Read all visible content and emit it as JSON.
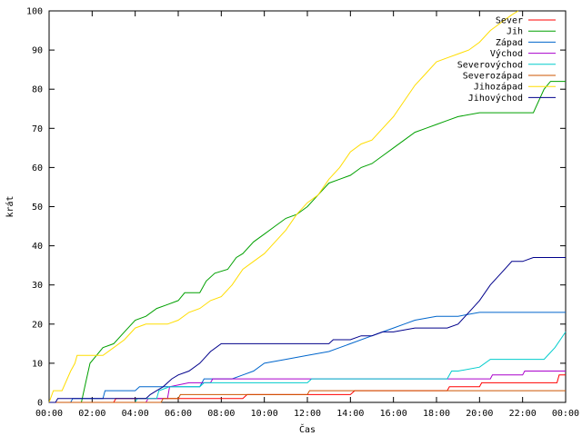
{
  "chart_data": {
    "type": "line",
    "xlabel": "Čas",
    "ylabel": "krát",
    "xlim": [
      0,
      24
    ],
    "ylim": [
      0,
      100
    ],
    "x_ticks": [
      "00:00",
      "02:00",
      "04:00",
      "06:00",
      "08:00",
      "10:00",
      "12:00",
      "14:00",
      "16:00",
      "18:00",
      "20:00",
      "22:00",
      "00:00"
    ],
    "y_ticks": [
      0,
      10,
      20,
      30,
      40,
      50,
      60,
      70,
      80,
      90,
      100
    ],
    "grid": false,
    "legend_position": "top-right",
    "series": [
      {
        "name": "Sever",
        "color": "#ff0000",
        "points": [
          [
            0,
            0
          ],
          [
            3,
            0
          ],
          [
            3.1,
            1
          ],
          [
            9,
            1
          ],
          [
            9.2,
            2
          ],
          [
            14,
            2
          ],
          [
            14.2,
            3
          ],
          [
            18.5,
            3
          ],
          [
            18.6,
            4
          ],
          [
            20,
            4
          ],
          [
            20.1,
            5
          ],
          [
            23.6,
            5
          ],
          [
            23.7,
            7
          ],
          [
            24,
            7
          ]
        ]
      },
      {
        "name": "Jih",
        "color": "#00a000",
        "points": [
          [
            0,
            0
          ],
          [
            1.5,
            0
          ],
          [
            1.7,
            5
          ],
          [
            1.9,
            10
          ],
          [
            2.2,
            12
          ],
          [
            2.5,
            14
          ],
          [
            3,
            15
          ],
          [
            3.5,
            18
          ],
          [
            4,
            21
          ],
          [
            4.5,
            22
          ],
          [
            5,
            24
          ],
          [
            5.5,
            25
          ],
          [
            6,
            26
          ],
          [
            6.3,
            28
          ],
          [
            7,
            28
          ],
          [
            7.3,
            31
          ],
          [
            7.7,
            33
          ],
          [
            8.3,
            34
          ],
          [
            8.7,
            37
          ],
          [
            9,
            38
          ],
          [
            9.5,
            41
          ],
          [
            10,
            43
          ],
          [
            10.5,
            45
          ],
          [
            11,
            47
          ],
          [
            11.5,
            48
          ],
          [
            12,
            50
          ],
          [
            12.5,
            53
          ],
          [
            13,
            56
          ],
          [
            13.5,
            57
          ],
          [
            14,
            58
          ],
          [
            14.5,
            60
          ],
          [
            15,
            61
          ],
          [
            15.5,
            63
          ],
          [
            16,
            65
          ],
          [
            16.5,
            67
          ],
          [
            17,
            69
          ],
          [
            17.5,
            70
          ],
          [
            18,
            71
          ],
          [
            18.5,
            72
          ],
          [
            19,
            73
          ],
          [
            20,
            74
          ],
          [
            22.5,
            74
          ],
          [
            23,
            80
          ],
          [
            23.3,
            82
          ],
          [
            24,
            82
          ]
        ]
      },
      {
        "name": "Západ",
        "color": "#0066cc",
        "points": [
          [
            0,
            0
          ],
          [
            1,
            0
          ],
          [
            1.1,
            1
          ],
          [
            2.5,
            1
          ],
          [
            2.6,
            3
          ],
          [
            4,
            3
          ],
          [
            4.2,
            4
          ],
          [
            7,
            4
          ],
          [
            7.2,
            6
          ],
          [
            8.5,
            6
          ],
          [
            9,
            7
          ],
          [
            9.5,
            8
          ],
          [
            10,
            10
          ],
          [
            11,
            11
          ],
          [
            12,
            12
          ],
          [
            13,
            13
          ],
          [
            13.5,
            14
          ],
          [
            14,
            15
          ],
          [
            15,
            17
          ],
          [
            15.5,
            18
          ],
          [
            16,
            19
          ],
          [
            16.5,
            20
          ],
          [
            17,
            21
          ],
          [
            18,
            22
          ],
          [
            19,
            22
          ],
          [
            20,
            23
          ],
          [
            24,
            23
          ]
        ]
      },
      {
        "name": "Východ",
        "color": "#aa00cc",
        "points": [
          [
            0,
            0
          ],
          [
            4.5,
            0
          ],
          [
            4.6,
            1
          ],
          [
            5.5,
            1
          ],
          [
            5.6,
            4
          ],
          [
            6.5,
            5
          ],
          [
            7.5,
            5
          ],
          [
            7.6,
            6
          ],
          [
            20.5,
            6
          ],
          [
            20.6,
            7
          ],
          [
            22,
            7
          ],
          [
            22.1,
            8
          ],
          [
            24,
            8
          ]
        ]
      },
      {
        "name": "Severovýchod",
        "color": "#00cccc",
        "points": [
          [
            0,
            0
          ],
          [
            4,
            0
          ],
          [
            4.1,
            1
          ],
          [
            5,
            1
          ],
          [
            5.1,
            3
          ],
          [
            5.6,
            4
          ],
          [
            7,
            4
          ],
          [
            7.2,
            5
          ],
          [
            12,
            5
          ],
          [
            12.2,
            6
          ],
          [
            18.5,
            6
          ],
          [
            18.7,
            8
          ],
          [
            19,
            8
          ],
          [
            20,
            9
          ],
          [
            20.5,
            11
          ],
          [
            23,
            11
          ],
          [
            23.5,
            14
          ],
          [
            24,
            18
          ]
        ]
      },
      {
        "name": "Severozápad",
        "color": "#cc5500",
        "points": [
          [
            0,
            0
          ],
          [
            5.2,
            0
          ],
          [
            5.3,
            1
          ],
          [
            6,
            1
          ],
          [
            6.1,
            2
          ],
          [
            12,
            2
          ],
          [
            12.1,
            3
          ],
          [
            24,
            3
          ]
        ]
      },
      {
        "name": "Jihozápad",
        "color": "#ffdd00",
        "points": [
          [
            0,
            0
          ],
          [
            0.2,
            3
          ],
          [
            0.6,
            3
          ],
          [
            1,
            8
          ],
          [
            1.2,
            10
          ],
          [
            1.3,
            12
          ],
          [
            2,
            12
          ],
          [
            2.5,
            12
          ],
          [
            3,
            14
          ],
          [
            3.5,
            16
          ],
          [
            4,
            19
          ],
          [
            4.5,
            20
          ],
          [
            5.5,
            20
          ],
          [
            6,
            21
          ],
          [
            6.5,
            23
          ],
          [
            7,
            24
          ],
          [
            7.5,
            26
          ],
          [
            8,
            27
          ],
          [
            8.5,
            30
          ],
          [
            9,
            34
          ],
          [
            9.5,
            36
          ],
          [
            10,
            38
          ],
          [
            10.5,
            41
          ],
          [
            11,
            44
          ],
          [
            11.5,
            48
          ],
          [
            12,
            51
          ],
          [
            12.5,
            53
          ],
          [
            13,
            57
          ],
          [
            13.5,
            60
          ],
          [
            14,
            64
          ],
          [
            14.5,
            66
          ],
          [
            15,
            67
          ],
          [
            15.5,
            70
          ],
          [
            16,
            73
          ],
          [
            16.5,
            77
          ],
          [
            17,
            81
          ],
          [
            17.5,
            84
          ],
          [
            18,
            87
          ],
          [
            18.5,
            88
          ],
          [
            19,
            89
          ],
          [
            19.5,
            90
          ],
          [
            20,
            92
          ],
          [
            20.5,
            95
          ],
          [
            21,
            97
          ],
          [
            21.5,
            99
          ],
          [
            21.8,
            100
          ]
        ]
      },
      {
        "name": "Jihovýchod",
        "color": "#00008b",
        "points": [
          [
            0,
            0
          ],
          [
            0.3,
            0
          ],
          [
            0.4,
            1
          ],
          [
            4.5,
            1
          ],
          [
            4.7,
            2
          ],
          [
            5,
            3
          ],
          [
            5.3,
            4
          ],
          [
            5.7,
            6
          ],
          [
            6,
            7
          ],
          [
            6.5,
            8
          ],
          [
            7,
            10
          ],
          [
            7.5,
            13
          ],
          [
            8,
            15
          ],
          [
            13,
            15
          ],
          [
            13.2,
            16
          ],
          [
            14,
            16
          ],
          [
            14.5,
            17
          ],
          [
            15,
            17
          ],
          [
            15.5,
            18
          ],
          [
            16,
            18
          ],
          [
            17,
            19
          ],
          [
            18.5,
            19
          ],
          [
            19,
            20
          ],
          [
            19.5,
            23
          ],
          [
            20,
            26
          ],
          [
            20.5,
            30
          ],
          [
            21,
            33
          ],
          [
            21.5,
            36
          ],
          [
            22,
            36
          ],
          [
            22.5,
            37
          ],
          [
            24,
            37
          ]
        ]
      }
    ]
  }
}
